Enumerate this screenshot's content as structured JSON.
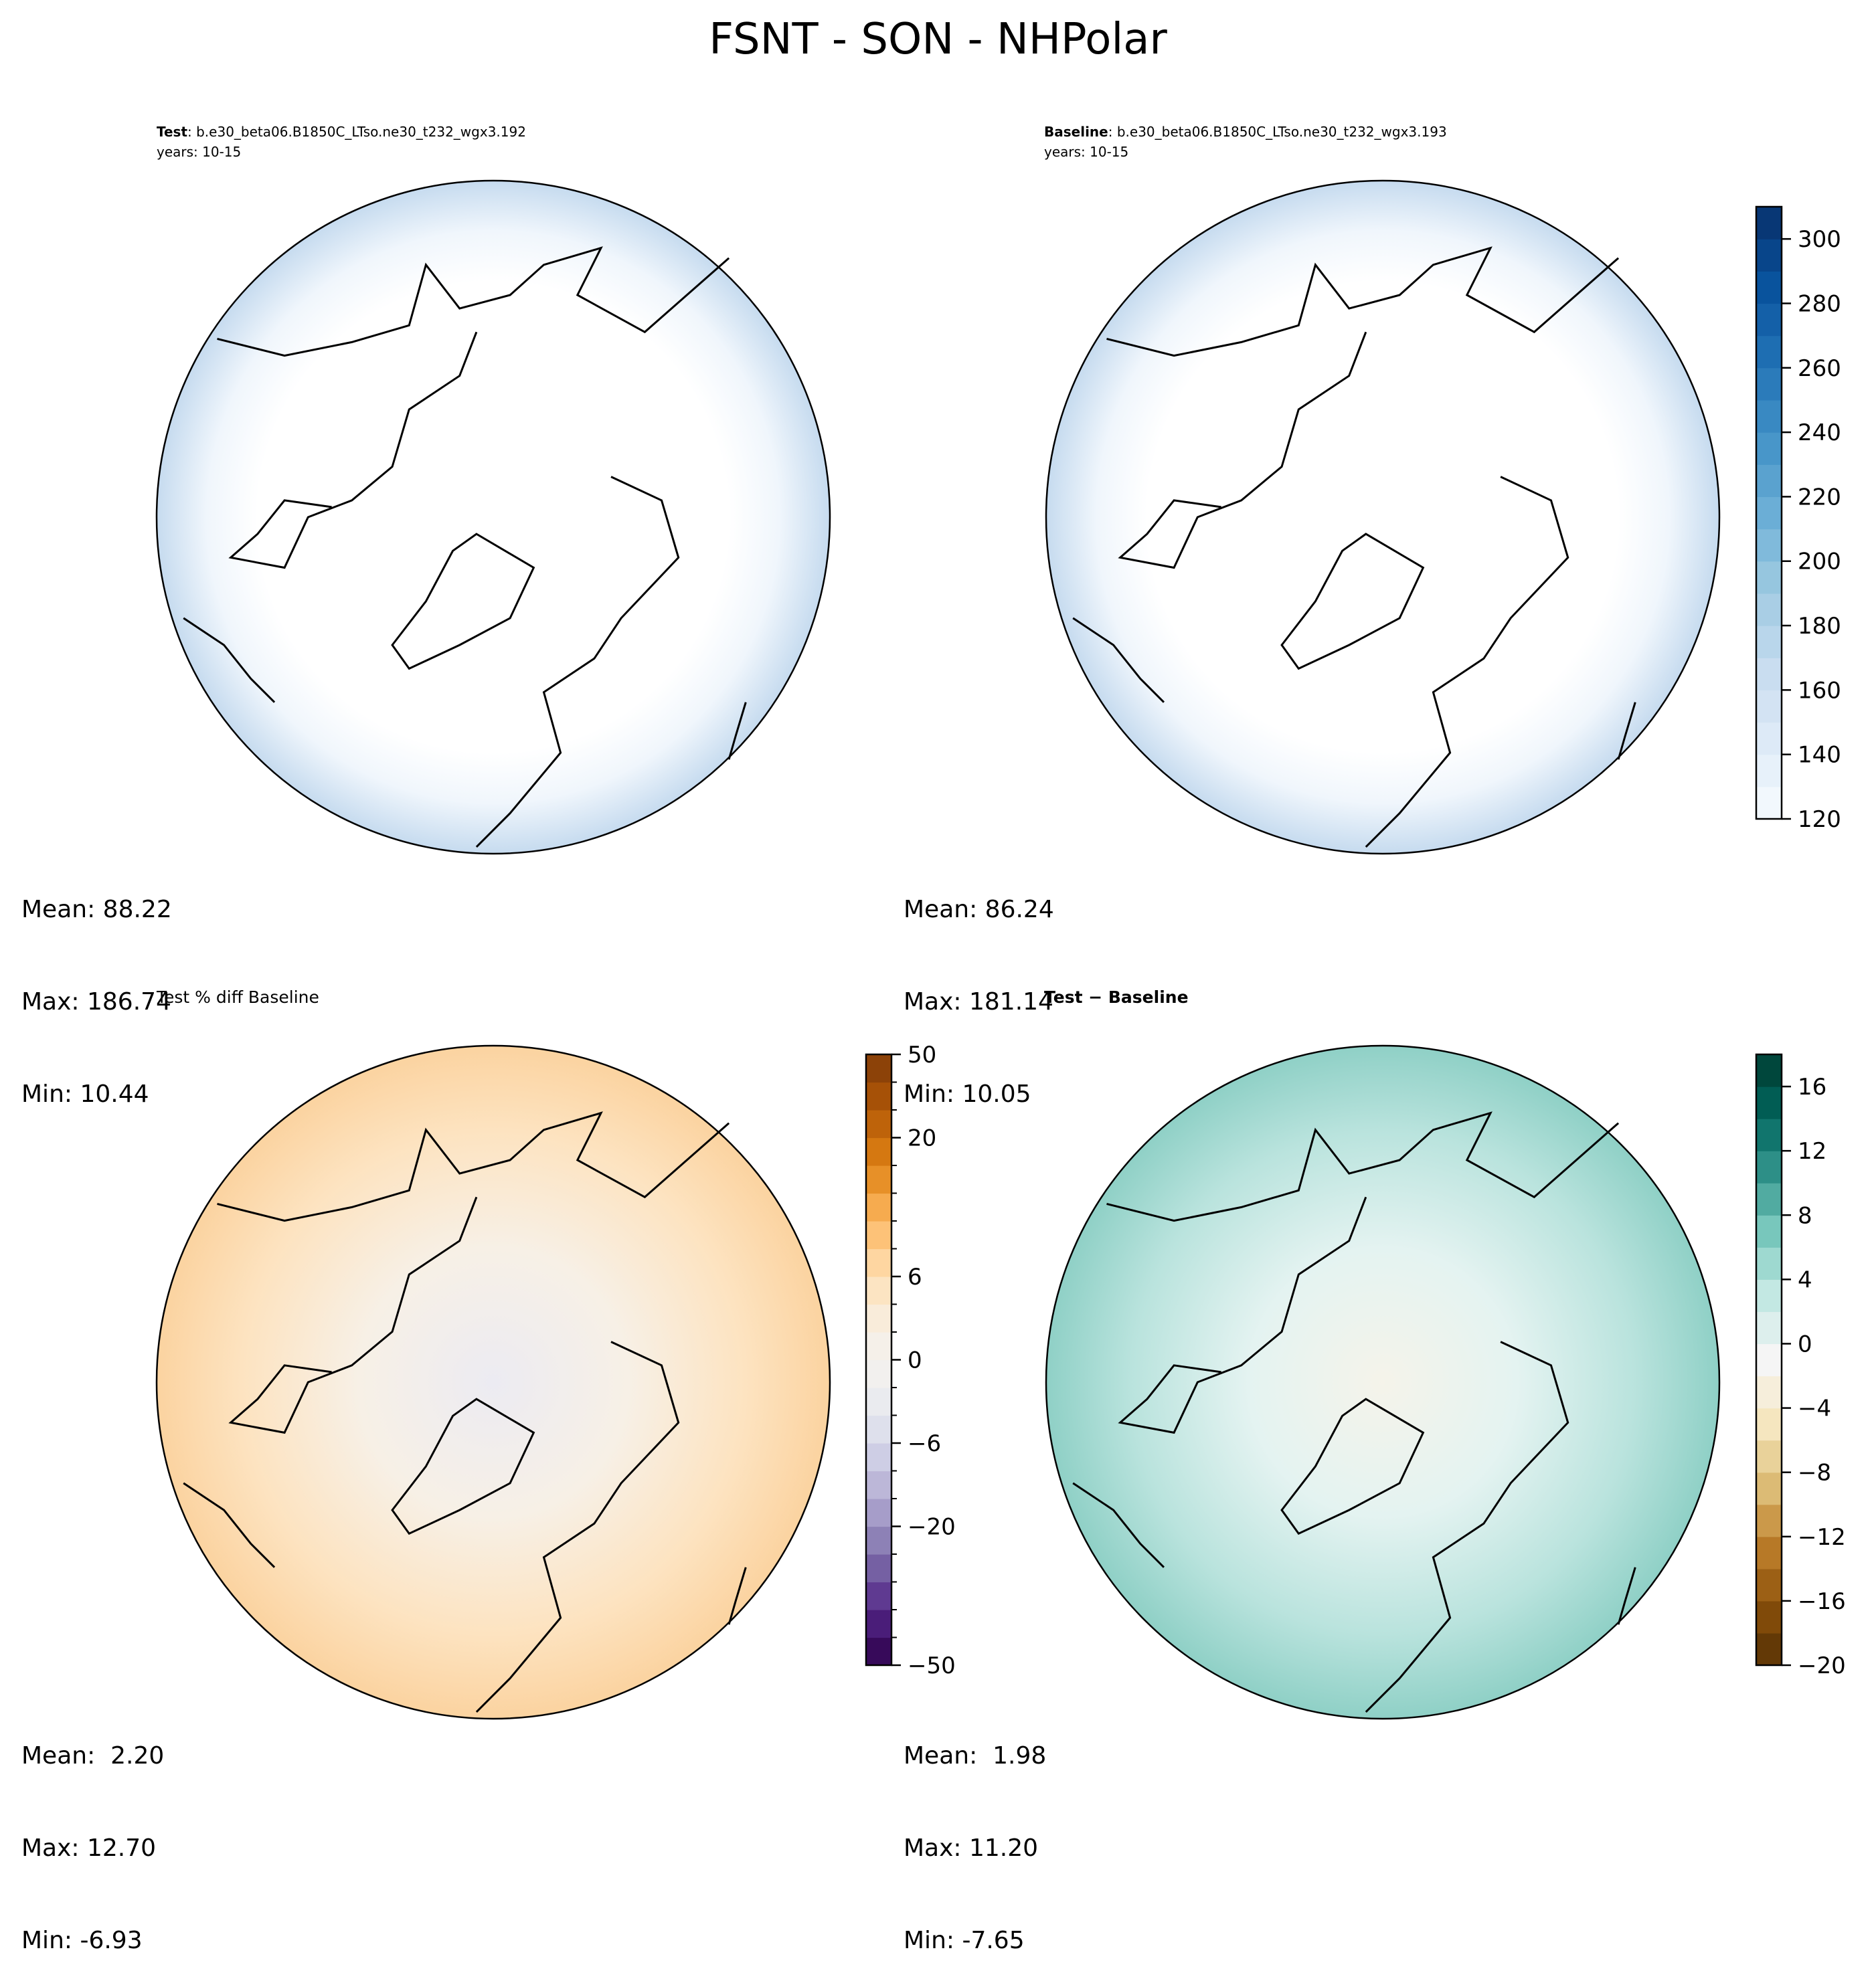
{
  "title": "FSNT - SON - NHPolar",
  "chart_data": [
    {
      "type": "heatmap",
      "projection": "north polar stereographic",
      "title_bold": "Test",
      "title_rest": ": b.e30_beta06.B1850C_LTso.ne30_t232_wgx3.192",
      "subtitle": "years: 10-15",
      "stats": {
        "mean": "Mean: 88.22",
        "max": "Max: 186.74",
        "min": "Min: 10.44"
      },
      "colormap": "Blues",
      "field": "low",
      "shares_colorbar_with": "Baseline"
    },
    {
      "type": "heatmap",
      "projection": "north polar stereographic",
      "title_bold": "Baseline",
      "title_rest": ": b.e30_beta06.B1850C_LTso.ne30_t232_wgx3.193",
      "subtitle": "years: 10-15",
      "stats": {
        "mean": "Mean: 86.24",
        "max": "Max: 181.14",
        "min": "Min: 10.05"
      },
      "colormap": "Blues",
      "colorbar": {
        "levels": [
          120,
          130,
          140,
          150,
          160,
          170,
          180,
          190,
          200,
          210,
          220,
          230,
          240,
          250,
          260,
          270,
          280,
          290,
          300,
          310
        ],
        "ticks": [
          "120",
          "140",
          "160",
          "180",
          "200",
          "220",
          "240",
          "260",
          "280",
          "300"
        ],
        "tick_values": [
          120,
          140,
          160,
          180,
          200,
          220,
          240,
          260,
          280,
          300
        ],
        "colors": [
          "#f7fbff",
          "#deebf7",
          "#c6dbef",
          "#9ecae1",
          "#6baed6",
          "#4292c6",
          "#2171b5",
          "#08519c",
          "#08306b"
        ]
      }
    },
    {
      "type": "heatmap",
      "projection": "north polar stereographic",
      "title_bold": "",
      "title_rest": "Test % diff Baseline",
      "subtitle": "",
      "stats": {
        "mean": "Mean:  2.20",
        "max": "Max: 12.70",
        "min": "Min: -6.93"
      },
      "colormap": "PuOr_r",
      "colorbar": {
        "band_count": 22,
        "ticks": [
          "50",
          "20",
          "6",
          "0",
          "−6",
          "−20",
          "−50"
        ],
        "tick_band_positions": [
          19,
          16,
          11,
          8,
          5,
          2,
          -3
        ],
        "colors": [
          "#2d004b",
          "#542788",
          "#8073ac",
          "#b2abd2",
          "#d8daeb",
          "#f0f0f0",
          "#f7f0e6",
          "#fee0b6",
          "#fdb863",
          "#e08214",
          "#b35806",
          "#7f3b08"
        ]
      }
    },
    {
      "type": "heatmap",
      "projection": "north polar stereographic",
      "title_bold": "Test − Baseline",
      "title_rest": "",
      "subtitle": "",
      "stats": {
        "mean": "Mean:  1.98",
        "max": "Max: 11.20",
        "min": "Min: -7.65"
      },
      "colormap": "BrBG",
      "colorbar": {
        "levels": [
          -20,
          -18,
          -16,
          -14,
          -12,
          -10,
          -8,
          -6,
          -4,
          -2,
          0,
          2,
          4,
          6,
          8,
          10,
          12,
          14,
          16,
          18
        ],
        "ticks": [
          "−20",
          "−16",
          "−12",
          "−8",
          "−4",
          "0",
          "4",
          "8",
          "12",
          "16"
        ],
        "tick_values": [
          -20,
          -16,
          -12,
          -8,
          -4,
          0,
          4,
          8,
          12,
          16
        ],
        "colors": [
          "#543005",
          "#8c510a",
          "#bf812d",
          "#dfc27d",
          "#f6e8c3",
          "#f5f5f5",
          "#c7eae5",
          "#80cdc1",
          "#35978f",
          "#01665e",
          "#003c30"
        ]
      }
    }
  ]
}
